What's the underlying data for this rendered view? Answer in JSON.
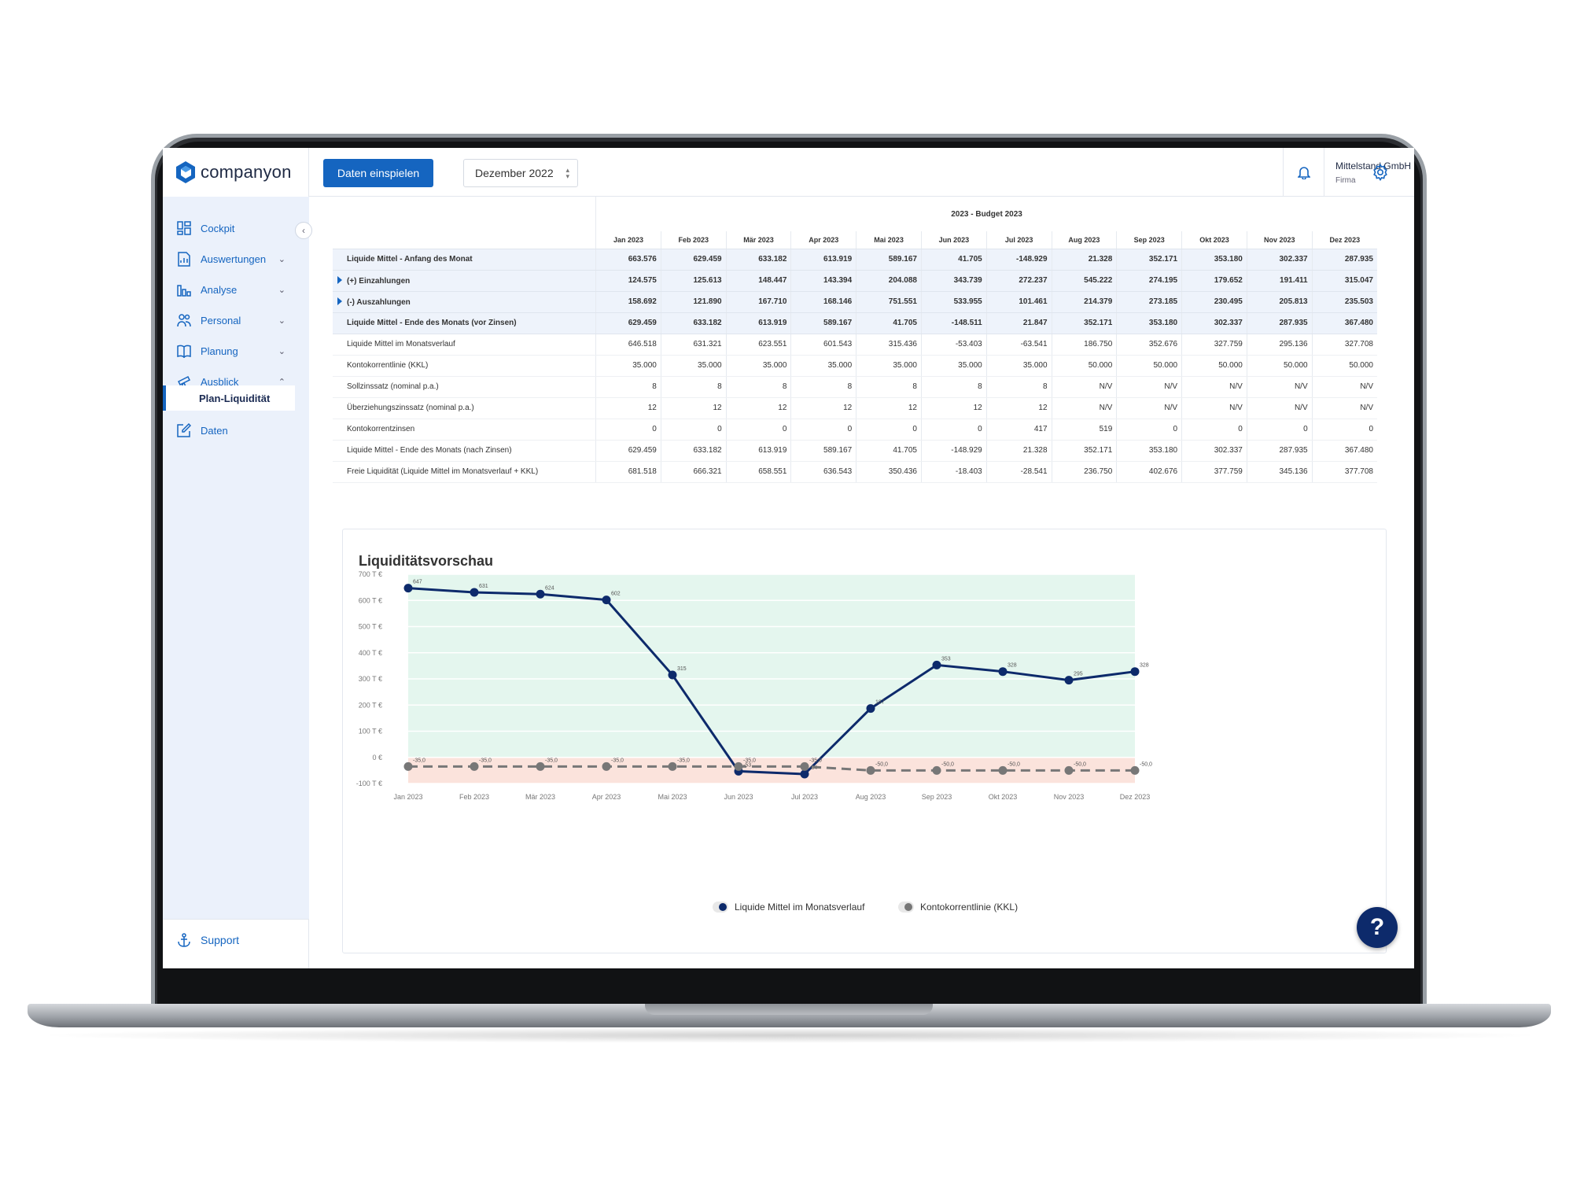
{
  "app": {
    "logo_text": "companyon"
  },
  "sidebar": {
    "items": [
      {
        "label": "Cockpit",
        "icon": "dashboard-icon",
        "chevron": ""
      },
      {
        "label": "Auswertungen",
        "icon": "report-icon",
        "chevron": "⌄"
      },
      {
        "label": "Analyse",
        "icon": "bar-chart-icon",
        "chevron": "⌄"
      },
      {
        "label": "Personal",
        "icon": "people-icon",
        "chevron": "⌄"
      },
      {
        "label": "Planung",
        "icon": "book-icon",
        "chevron": "⌄"
      },
      {
        "label": "Ausblick",
        "icon": "telescope-icon",
        "chevron": "⌃"
      },
      {
        "label": "Daten",
        "icon": "edit-icon",
        "chevron": ""
      }
    ],
    "sub_item": "Plan-Liquidität",
    "support": "Support"
  },
  "topbar": {
    "primary_button": "Daten einspielen",
    "period_select": "Dezember 2022",
    "company_name": "Mittelstand GmbH",
    "company_sub": "Firma"
  },
  "table": {
    "group_title": "2023 - Budget 2023",
    "months": [
      "Jan 2023",
      "Feb 2023",
      "Mär 2023",
      "Apr 2023",
      "Mai 2023",
      "Jun 2023",
      "Jul 2023",
      "Aug 2023",
      "Sep 2023",
      "Okt 2023",
      "Nov 2023",
      "Dez 2023"
    ],
    "rows": [
      {
        "label": "Liquide Mittel - Anfang des Monat",
        "highlight": true,
        "expand": false,
        "values": [
          "663.576",
          "629.459",
          "633.182",
          "613.919",
          "589.167",
          "41.705",
          "-148.929",
          "21.328",
          "352.171",
          "353.180",
          "302.337",
          "287.935"
        ]
      },
      {
        "label": "(+) Einzahlungen",
        "highlight": true,
        "expand": true,
        "values": [
          "124.575",
          "125.613",
          "148.447",
          "143.394",
          "204.088",
          "343.739",
          "272.237",
          "545.222",
          "274.195",
          "179.652",
          "191.411",
          "315.047"
        ]
      },
      {
        "label": "(-) Auszahlungen",
        "highlight": true,
        "expand": true,
        "values": [
          "158.692",
          "121.890",
          "167.710",
          "168.146",
          "751.551",
          "533.955",
          "101.461",
          "214.379",
          "273.185",
          "230.495",
          "205.813",
          "235.503"
        ]
      },
      {
        "label": "Liquide Mittel - Ende des Monats (vor Zinsen)",
        "highlight": true,
        "expand": false,
        "values": [
          "629.459",
          "633.182",
          "613.919",
          "589.167",
          "41.705",
          "-148.511",
          "21.847",
          "352.171",
          "353.180",
          "302.337",
          "287.935",
          "367.480"
        ]
      },
      {
        "label": "Liquide Mittel im Monatsverlauf",
        "highlight": false,
        "expand": false,
        "values": [
          "646.518",
          "631.321",
          "623.551",
          "601.543",
          "315.436",
          "-53.403",
          "-63.541",
          "186.750",
          "352.676",
          "327.759",
          "295.136",
          "327.708"
        ]
      },
      {
        "label": "Kontokorrentlinie (KKL)",
        "highlight": false,
        "expand": false,
        "values": [
          "35.000",
          "35.000",
          "35.000",
          "35.000",
          "35.000",
          "35.000",
          "35.000",
          "50.000",
          "50.000",
          "50.000",
          "50.000",
          "50.000"
        ]
      },
      {
        "label": "Sollzinssatz (nominal p.a.)",
        "highlight": false,
        "expand": false,
        "values": [
          "8",
          "8",
          "8",
          "8",
          "8",
          "8",
          "8",
          "N/V",
          "N/V",
          "N/V",
          "N/V",
          "N/V"
        ]
      },
      {
        "label": "Überziehungszinssatz (nominal p.a.)",
        "highlight": false,
        "expand": false,
        "values": [
          "12",
          "12",
          "12",
          "12",
          "12",
          "12",
          "12",
          "N/V",
          "N/V",
          "N/V",
          "N/V",
          "N/V"
        ]
      },
      {
        "label": "Kontokorrentzinsen",
        "highlight": false,
        "expand": false,
        "values": [
          "0",
          "0",
          "0",
          "0",
          "0",
          "0",
          "417",
          "519",
          "0",
          "0",
          "0",
          "0"
        ]
      },
      {
        "label": "Liquide Mittel - Ende des Monats (nach Zinsen)",
        "highlight": false,
        "expand": false,
        "values": [
          "629.459",
          "633.182",
          "613.919",
          "589.167",
          "41.705",
          "-148.929",
          "21.328",
          "352.171",
          "353.180",
          "302.337",
          "287.935",
          "367.480"
        ]
      },
      {
        "label": "Freie Liquidität (Liquide Mittel im Monatsverlauf + KKL)",
        "highlight": false,
        "expand": false,
        "values": [
          "681.518",
          "666.321",
          "658.551",
          "636.543",
          "350.436",
          "-18.403",
          "-28.541",
          "236.750",
          "402.676",
          "377.759",
          "345.136",
          "377.708"
        ]
      }
    ]
  },
  "chart_data": {
    "type": "line",
    "title": "Liquiditätsvorschau",
    "categories": [
      "Jan 2023",
      "Feb 2023",
      "Mär 2023",
      "Apr 2023",
      "Mai 2023",
      "Jun 2023",
      "Jul 2023",
      "Aug 2023",
      "Sep 2023",
      "Okt 2023",
      "Nov 2023",
      "Dez 2023"
    ],
    "ylim": [
      -100,
      700
    ],
    "yticks": [
      "-100 T €",
      "0 €",
      "100 T €",
      "200 T €",
      "300 T €",
      "400 T €",
      "500 T €",
      "600 T €",
      "700 T €"
    ],
    "ytick_values": [
      -100,
      0,
      100,
      200,
      300,
      400,
      500,
      600,
      700
    ],
    "series": [
      {
        "name": "Liquide Mittel im Monatsverlauf",
        "color": "#0d2a6b",
        "dashed": false,
        "values": [
          647,
          631,
          624,
          602,
          315,
          -53,
          -64,
          187,
          353,
          328,
          295,
          328
        ],
        "labels": [
          "647",
          "631",
          "624",
          "602",
          "315",
          "-53",
          "-64",
          "187",
          "353",
          "328",
          "295",
          "328"
        ]
      },
      {
        "name": "Kontokorrentlinie (KKL)",
        "color": "#777777",
        "dashed": true,
        "values": [
          -35,
          -35,
          -35,
          -35,
          -35,
          -35,
          -35,
          -50,
          -50,
          -50,
          -50,
          -50
        ],
        "labels": [
          "-35,0",
          "-35,0",
          "-35,0",
          "-35,0",
          "-35,0",
          "-35,0",
          "-35,0",
          "-50,0",
          "-50,0",
          "-50,0",
          "-50,0",
          "-50,0"
        ]
      }
    ],
    "zones": {
      "positive_color": "#e4f6ee",
      "negative_color": "#fbe3dc"
    },
    "legend_position": "bottom-center",
    "grid": true
  },
  "help": {
    "label": "?"
  }
}
